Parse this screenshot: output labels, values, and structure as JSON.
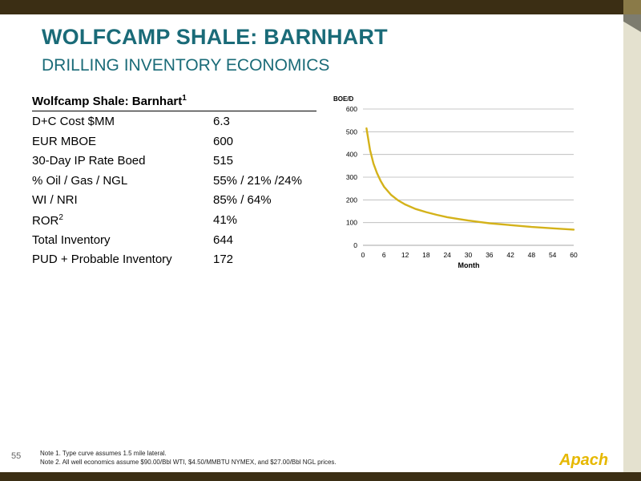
{
  "slide": {
    "title": "WOLFCAMP SHALE: BARNHART",
    "subtitle": "DRILLING INVENTORY ECONOMICS",
    "number": "55"
  },
  "metrics": {
    "header": "Wolfcamp Shale: Barnhart",
    "header_sup": "1",
    "rows": [
      {
        "label": "D+C Cost $MM",
        "sup": "",
        "value": "6.3"
      },
      {
        "label": "EUR MBOE",
        "sup": "",
        "value": "600"
      },
      {
        "label": "30-Day IP Rate Boed",
        "sup": "",
        "value": "515"
      },
      {
        "label": "% Oil / Gas / NGL",
        "sup": "",
        "value": "55% / 21% /24%"
      },
      {
        "label": "WI / NRI",
        "sup": "",
        "value": "85% / 64%"
      },
      {
        "label": "ROR",
        "sup": "2",
        "value": "41%"
      },
      {
        "label": "Total Inventory",
        "sup": "",
        "value": "644"
      },
      {
        "label": "PUD + Probable Inventory",
        "sup": "",
        "value": "172"
      }
    ]
  },
  "chart_data": {
    "type": "line",
    "title": "",
    "xlabel": "Month",
    "ylabel": "BOE/D",
    "xlim": [
      0,
      60
    ],
    "ylim": [
      0,
      600
    ],
    "x_ticks": [
      0,
      6,
      12,
      18,
      24,
      30,
      36,
      42,
      48,
      54,
      60
    ],
    "y_ticks": [
      0,
      100,
      200,
      300,
      400,
      500,
      600
    ],
    "grid": "horizontal",
    "legend": "none",
    "color": "#d4b21a",
    "series": [
      {
        "x": [
          1,
          2,
          3,
          4,
          5,
          6,
          8,
          10,
          12,
          15,
          18,
          21,
          24,
          27,
          30,
          33,
          36,
          42,
          48,
          54,
          60
        ],
        "values": [
          515,
          420,
          360,
          318,
          285,
          258,
          222,
          198,
          180,
          160,
          146,
          134,
          124,
          116,
          109,
          103,
          97,
          89,
          81,
          75,
          69
        ]
      }
    ]
  },
  "notes": [
    "Note 1. Type curve assumes 1.5 mile lateral.",
    "Note 2. All well economics assume $90.00/Bbl WTI, $4.50/MMBTU NYMEX, and $27.00/Bbl NGL prices."
  ],
  "logo": {
    "text": "Apache",
    "color": "#e6b800"
  }
}
